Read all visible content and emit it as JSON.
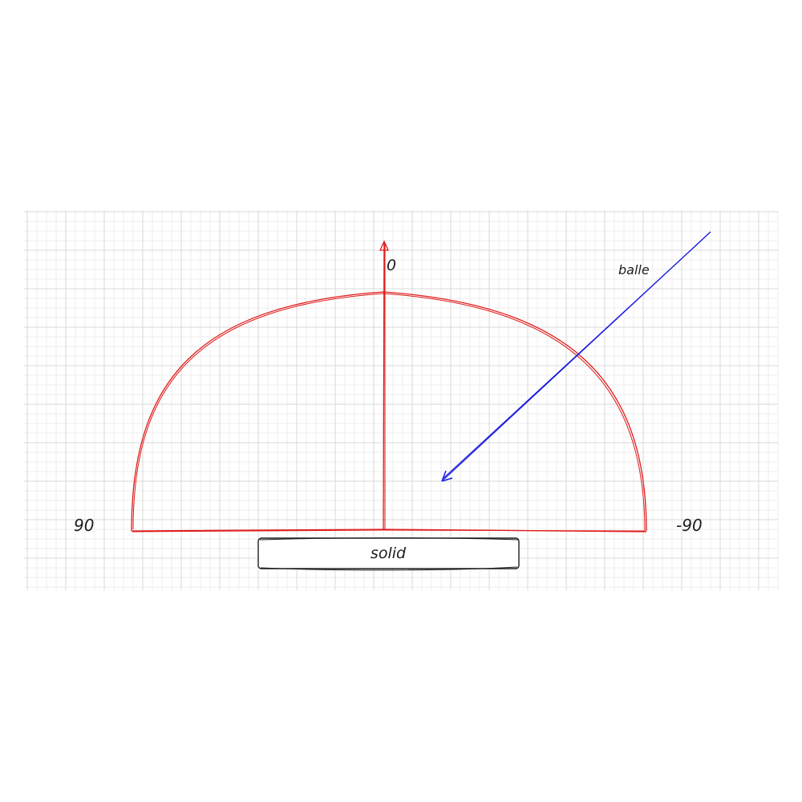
{
  "labels": {
    "zero": "0",
    "left_angle": "90",
    "right_angle": "-90",
    "ball": "balle",
    "solid": "solid"
  },
  "colors": {
    "background": "#ffffff",
    "grid_minor": "#eeeeee",
    "grid_major": "#d8d8d8",
    "protractor": "#e01a1a",
    "ball_arrow": "#1a1ae0",
    "solid_stroke": "#1e1e1e",
    "text": "#1e1e1e"
  },
  "grid": true
}
